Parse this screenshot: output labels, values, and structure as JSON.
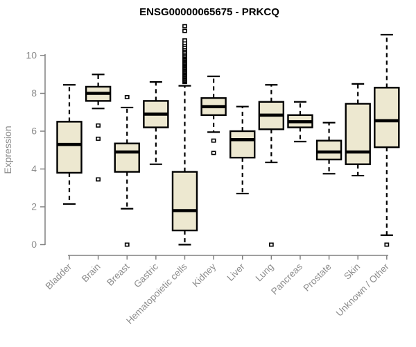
{
  "chart_data": {
    "type": "boxplot",
    "title": "ENSG00000065675 - PRKCQ",
    "ylabel": "Expression",
    "xlabel": "",
    "ylim": [
      0,
      10
    ],
    "yticks": [
      0,
      2,
      4,
      6,
      8,
      10
    ],
    "grid": false,
    "legend": false,
    "categories": [
      "Bladder",
      "Brain",
      "Breast",
      "Gastric",
      "Hematopoietic cells",
      "Kidney",
      "Liver",
      "Lung",
      "Pancreas",
      "Prostate",
      "Skin",
      "Unknown / Other"
    ],
    "boxes": [
      {
        "category": "Bladder",
        "whisker_low": 2.15,
        "q1": 3.8,
        "median": 5.3,
        "q3": 6.5,
        "whisker_high": 8.45,
        "outliers": []
      },
      {
        "category": "Brain",
        "whisker_low": 7.2,
        "q1": 7.6,
        "median": 8.0,
        "q3": 8.35,
        "whisker_high": 9.0,
        "outliers": [
          6.3,
          5.6,
          3.45
        ]
      },
      {
        "category": "Breast",
        "whisker_low": 1.9,
        "q1": 3.85,
        "median": 4.9,
        "q3": 5.35,
        "whisker_high": 7.25,
        "outliers": [
          7.8,
          0
        ]
      },
      {
        "category": "Gastric",
        "whisker_low": 4.25,
        "q1": 6.2,
        "median": 6.9,
        "q3": 7.6,
        "whisker_high": 8.6,
        "outliers": []
      },
      {
        "category": "Hematopoietic cells",
        "whisker_low": 0.0,
        "q1": 0.75,
        "median": 1.8,
        "q3": 3.85,
        "whisker_high": 8.4,
        "outliers": [
          8.6,
          8.66,
          8.72,
          8.78,
          8.84,
          8.9,
          8.96,
          9.02,
          9.08,
          9.14,
          9.2,
          9.26,
          9.32,
          9.38,
          9.44,
          9.5,
          9.56,
          9.62,
          9.68,
          9.74,
          9.8,
          9.86,
          9.92,
          9.98,
          10.05,
          10.12,
          10.2,
          10.28,
          10.36,
          10.45,
          10.55,
          10.65,
          10.8,
          11.3,
          11.55
        ]
      },
      {
        "category": "Kidney",
        "whisker_low": 5.95,
        "q1": 6.85,
        "median": 7.3,
        "q3": 7.75,
        "whisker_high": 8.9,
        "outliers": [
          5.5,
          4.85
        ]
      },
      {
        "category": "Liver",
        "whisker_low": 2.7,
        "q1": 4.6,
        "median": 5.55,
        "q3": 6.0,
        "whisker_high": 7.3,
        "outliers": []
      },
      {
        "category": "Lung",
        "whisker_low": 4.35,
        "q1": 6.1,
        "median": 6.85,
        "q3": 7.55,
        "whisker_high": 8.45,
        "outliers": [
          0
        ]
      },
      {
        "category": "Pancreas",
        "whisker_low": 5.45,
        "q1": 6.2,
        "median": 6.5,
        "q3": 6.85,
        "whisker_high": 7.55,
        "outliers": []
      },
      {
        "category": "Prostate",
        "whisker_low": 3.75,
        "q1": 4.5,
        "median": 4.9,
        "q3": 5.5,
        "whisker_high": 6.45,
        "outliers": []
      },
      {
        "category": "Skin",
        "whisker_low": 3.65,
        "q1": 4.25,
        "median": 4.9,
        "q3": 7.45,
        "whisker_high": 8.5,
        "outliers": []
      },
      {
        "category": "Unknown / Other",
        "whisker_low": 0.5,
        "q1": 5.15,
        "median": 6.55,
        "q3": 8.3,
        "whisker_high": 11.1,
        "outliers": [
          0
        ]
      }
    ],
    "colors": {
      "box_fill": "#EDE8D0",
      "box_stroke": "#000000",
      "median": "#000000",
      "whisker": "#000000",
      "outlier_stroke": "#000000",
      "outlier_fill": "#ffffff",
      "axis_line": "#808080",
      "axis_text": "#8c8c8c",
      "title_text": "#000000"
    }
  }
}
